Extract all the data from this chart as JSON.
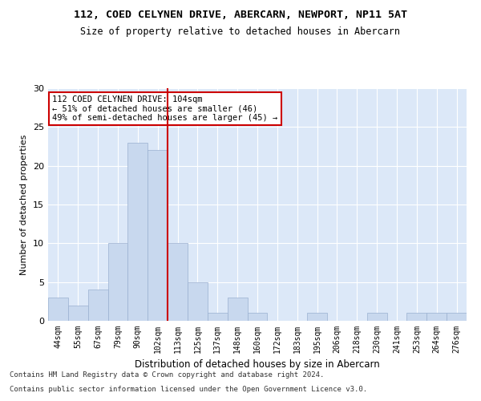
{
  "title": "112, COED CELYNEN DRIVE, ABERCARN, NEWPORT, NP11 5AT",
  "subtitle": "Size of property relative to detached houses in Abercarn",
  "xlabel": "Distribution of detached houses by size in Abercarn",
  "ylabel": "Number of detached properties",
  "categories": [
    "44sqm",
    "55sqm",
    "67sqm",
    "79sqm",
    "90sqm",
    "102sqm",
    "113sqm",
    "125sqm",
    "137sqm",
    "148sqm",
    "160sqm",
    "172sqm",
    "183sqm",
    "195sqm",
    "206sqm",
    "218sqm",
    "230sqm",
    "241sqm",
    "253sqm",
    "264sqm",
    "276sqm"
  ],
  "values": [
    3,
    2,
    4,
    10,
    23,
    22,
    10,
    5,
    1,
    3,
    1,
    0,
    0,
    1,
    0,
    0,
    1,
    0,
    1,
    1,
    1
  ],
  "bar_color": "#c8d8ee",
  "bar_edge_color": "#9ab0d0",
  "subject_line_color": "#cc0000",
  "annotation_text": "112 COED CELYNEN DRIVE: 104sqm\n← 51% of detached houses are smaller (46)\n49% of semi-detached houses are larger (45) →",
  "annotation_box_color": "#ffffff",
  "annotation_box_edge": "#cc0000",
  "ylim": [
    0,
    30
  ],
  "yticks": [
    0,
    5,
    10,
    15,
    20,
    25,
    30
  ],
  "bg_color": "#dce8f8",
  "footnote1": "Contains HM Land Registry data © Crown copyright and database right 2024.",
  "footnote2": "Contains public sector information licensed under the Open Government Licence v3.0."
}
